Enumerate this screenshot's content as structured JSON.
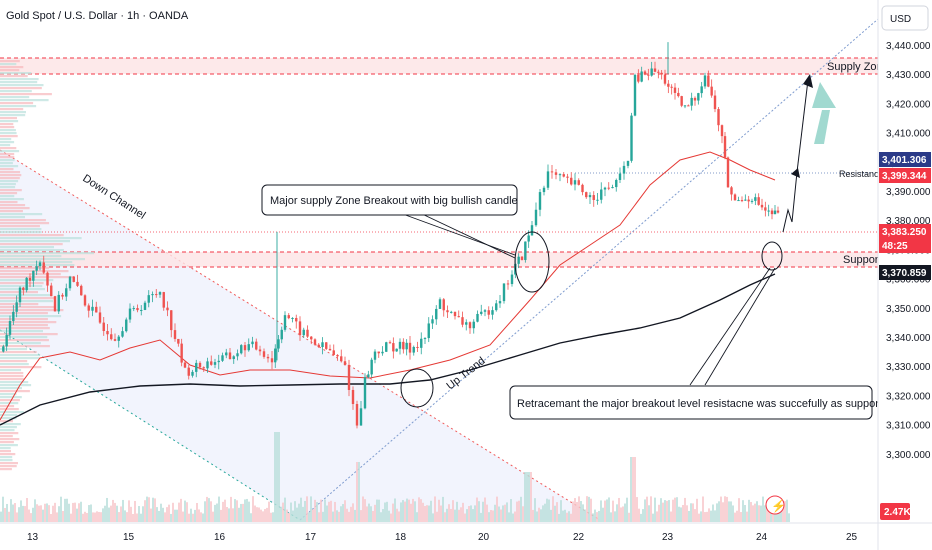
{
  "chart_data": {
    "type": "candlestick",
    "title": "Gold Spot / U.S. Dollar · 1h · OANDA",
    "currency": "USD",
    "x_ticks": [
      "13",
      "15",
      "16",
      "17",
      "18",
      "20",
      "22",
      "23",
      "24",
      "25"
    ],
    "y_ticks": [
      "3,440.000",
      "3,430.000",
      "3,420.000",
      "3,410.000",
      "3,400.000",
      "3,390.000",
      "3,380.000",
      "3,370.000",
      "3,360.000",
      "3,350.000",
      "3,340.000",
      "3,330.000",
      "3,320.000",
      "3,310.000",
      "3,300.000"
    ],
    "y_tick_values": [
      3440,
      3430,
      3420,
      3410,
      3400,
      3390,
      3380,
      3370,
      3360,
      3350,
      3340,
      3330,
      3320,
      3310,
      3300
    ],
    "ylim": [
      3300,
      3442
    ],
    "levels": {
      "supply_zone": [
        3430.5,
        3436.5
      ],
      "resistance": 3401.3,
      "support_zone": [
        3371.5,
        3375.5
      ],
      "price_line": 3383.25
    },
    "price_labels": [
      {
        "value": "3,401.306",
        "bg": "#2a3a88",
        "fg": "#ffffff"
      },
      {
        "value": "3,399.344",
        "bg": "#f23645",
        "fg": "#ffffff"
      },
      {
        "value": "3,383.250",
        "bg": "#f23645",
        "fg": "#ffffff"
      },
      {
        "value": "48:25",
        "bg": "#f23645",
        "fg": "#ffffff"
      },
      {
        "value": "3,370.859",
        "bg": "#131722",
        "fg": "#ffffff"
      }
    ],
    "volume_label": "2.47K",
    "annotations": {
      "supply_zone": "Supply Zone",
      "resistance": "Resistance",
      "support": "Support",
      "down_channel": "Down Channel",
      "up_trend": "Up Trend",
      "breakout": "Major supply Zone Breakout with big bullish candle",
      "retracement": "Retracemant the major breakout level resistacne was succefully as support"
    },
    "colors": {
      "up": "#26a69a",
      "down": "#ef5350",
      "ma_fast": "#e53935",
      "ma_slow": "#131722",
      "zone": "#f23645"
    }
  }
}
